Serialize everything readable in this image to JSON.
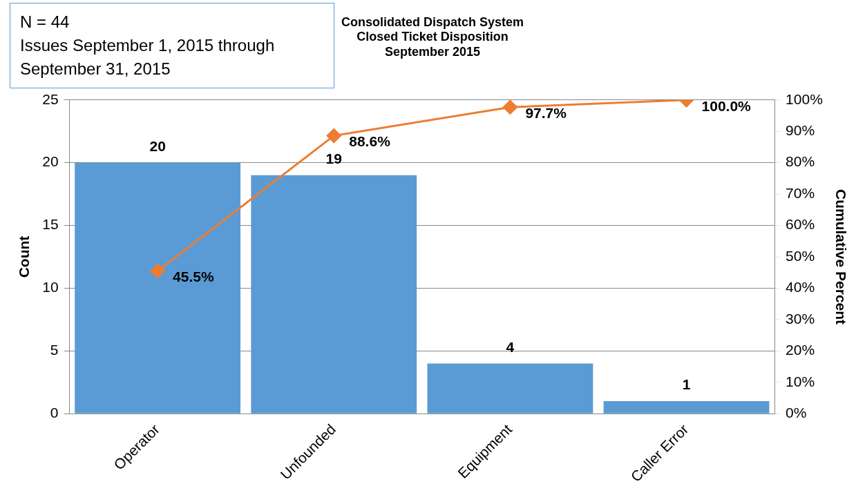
{
  "chart_data": {
    "type": "bar",
    "title": "Consolidated Dispatch System\nClosed Ticket Disposition\nSeptember 2015",
    "annotations": [
      "N = 44\nIssues September 1, 2015 through September 31, 2015"
    ],
    "categories": [
      "Operator",
      "Unfounded",
      "Equipment",
      "Caller Error"
    ],
    "series": [
      {
        "color": "#5b9bd5",
        "values": [
          20,
          19,
          4,
          1
        ],
        "value_labels": [
          "20",
          "19",
          "4",
          "1"
        ]
      },
      {
        "type": "line",
        "axis": "y2",
        "color": "#ed7d31",
        "marker": "diamond",
        "values": [
          45.5,
          88.6,
          97.7,
          100.0
        ],
        "value_labels": [
          "45.5%",
          "88.6%",
          "97.7%",
          "100.0%"
        ]
      }
    ],
    "ylabel": "Count",
    "y2label": "Cumulative Percent",
    "ylim": [
      0,
      25
    ],
    "yticks": [
      0,
      5,
      10,
      15,
      20,
      25
    ],
    "y2lim": [
      0,
      100
    ],
    "y2ticks": [
      {
        "value": 0,
        "label": "0%"
      },
      {
        "value": 10,
        "label": "10%"
      },
      {
        "value": 20,
        "label": "20%"
      },
      {
        "value": 30,
        "label": "30%"
      },
      {
        "value": 40,
        "label": "40%"
      },
      {
        "value": 50,
        "label": "50%"
      },
      {
        "value": 60,
        "label": "60%"
      },
      {
        "value": 70,
        "label": "70%"
      },
      {
        "value": 80,
        "label": "80%"
      },
      {
        "value": 90,
        "label": "90%"
      },
      {
        "value": 100,
        "label": "100%"
      }
    ],
    "grid": "y",
    "legend": false
  }
}
